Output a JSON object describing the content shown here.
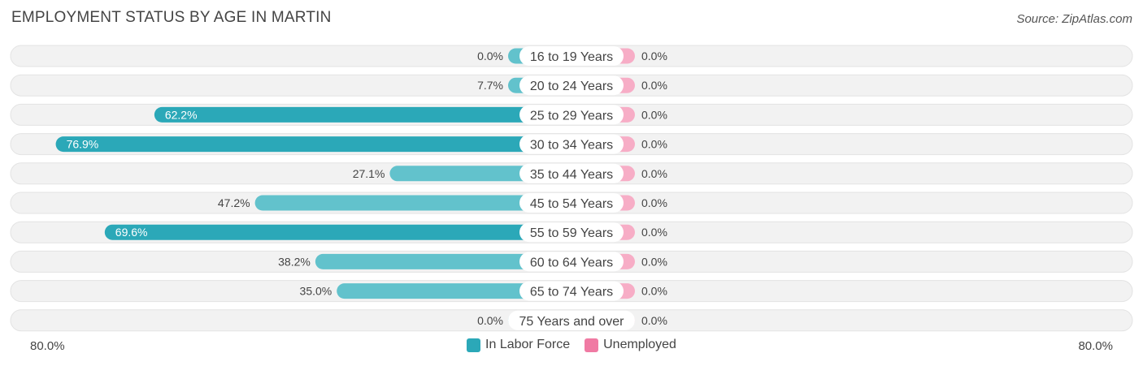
{
  "title": "EMPLOYMENT STATUS BY AGE IN MARTIN",
  "source": "Source: ZipAtlas.com",
  "colors": {
    "labor_force": "#2ba8b8",
    "labor_force_light": "#62c2cc",
    "unemployed": "#f07aa3",
    "unemployed_light": "#f7adc6",
    "row_bg": "#f2f2f2"
  },
  "axis": {
    "left_label": "80.0%",
    "right_label": "80.0%"
  },
  "legend": [
    {
      "name": "In Labor Force",
      "color": "#2ba8b8"
    },
    {
      "name": "Unemployed",
      "color": "#f07aa3"
    }
  ],
  "chart_data": {
    "type": "bar",
    "orientation": "diverging-horizontal",
    "xlim": [
      -80,
      80
    ],
    "categories": [
      "16 to 19 Years",
      "20 to 24 Years",
      "25 to 29 Years",
      "30 to 34 Years",
      "35 to 44 Years",
      "45 to 54 Years",
      "55 to 59 Years",
      "60 to 64 Years",
      "65 to 74 Years",
      "75 Years and over"
    ],
    "series": [
      {
        "name": "In Labor Force",
        "values": [
          0.0,
          7.7,
          62.2,
          76.9,
          27.1,
          47.2,
          69.6,
          38.2,
          35.0,
          0.0
        ],
        "labels": [
          "0.0%",
          "7.7%",
          "62.2%",
          "76.9%",
          "27.1%",
          "47.2%",
          "69.6%",
          "38.2%",
          "35.0%",
          "0.0%"
        ]
      },
      {
        "name": "Unemployed",
        "values": [
          0.0,
          0.0,
          0.0,
          0.0,
          0.0,
          0.0,
          0.0,
          0.0,
          0.0,
          0.0
        ],
        "labels": [
          "0.0%",
          "0.0%",
          "0.0%",
          "0.0%",
          "0.0%",
          "0.0%",
          "0.0%",
          "0.0%",
          "0.0%",
          "0.0%"
        ]
      }
    ],
    "legend_position": "bottom"
  }
}
